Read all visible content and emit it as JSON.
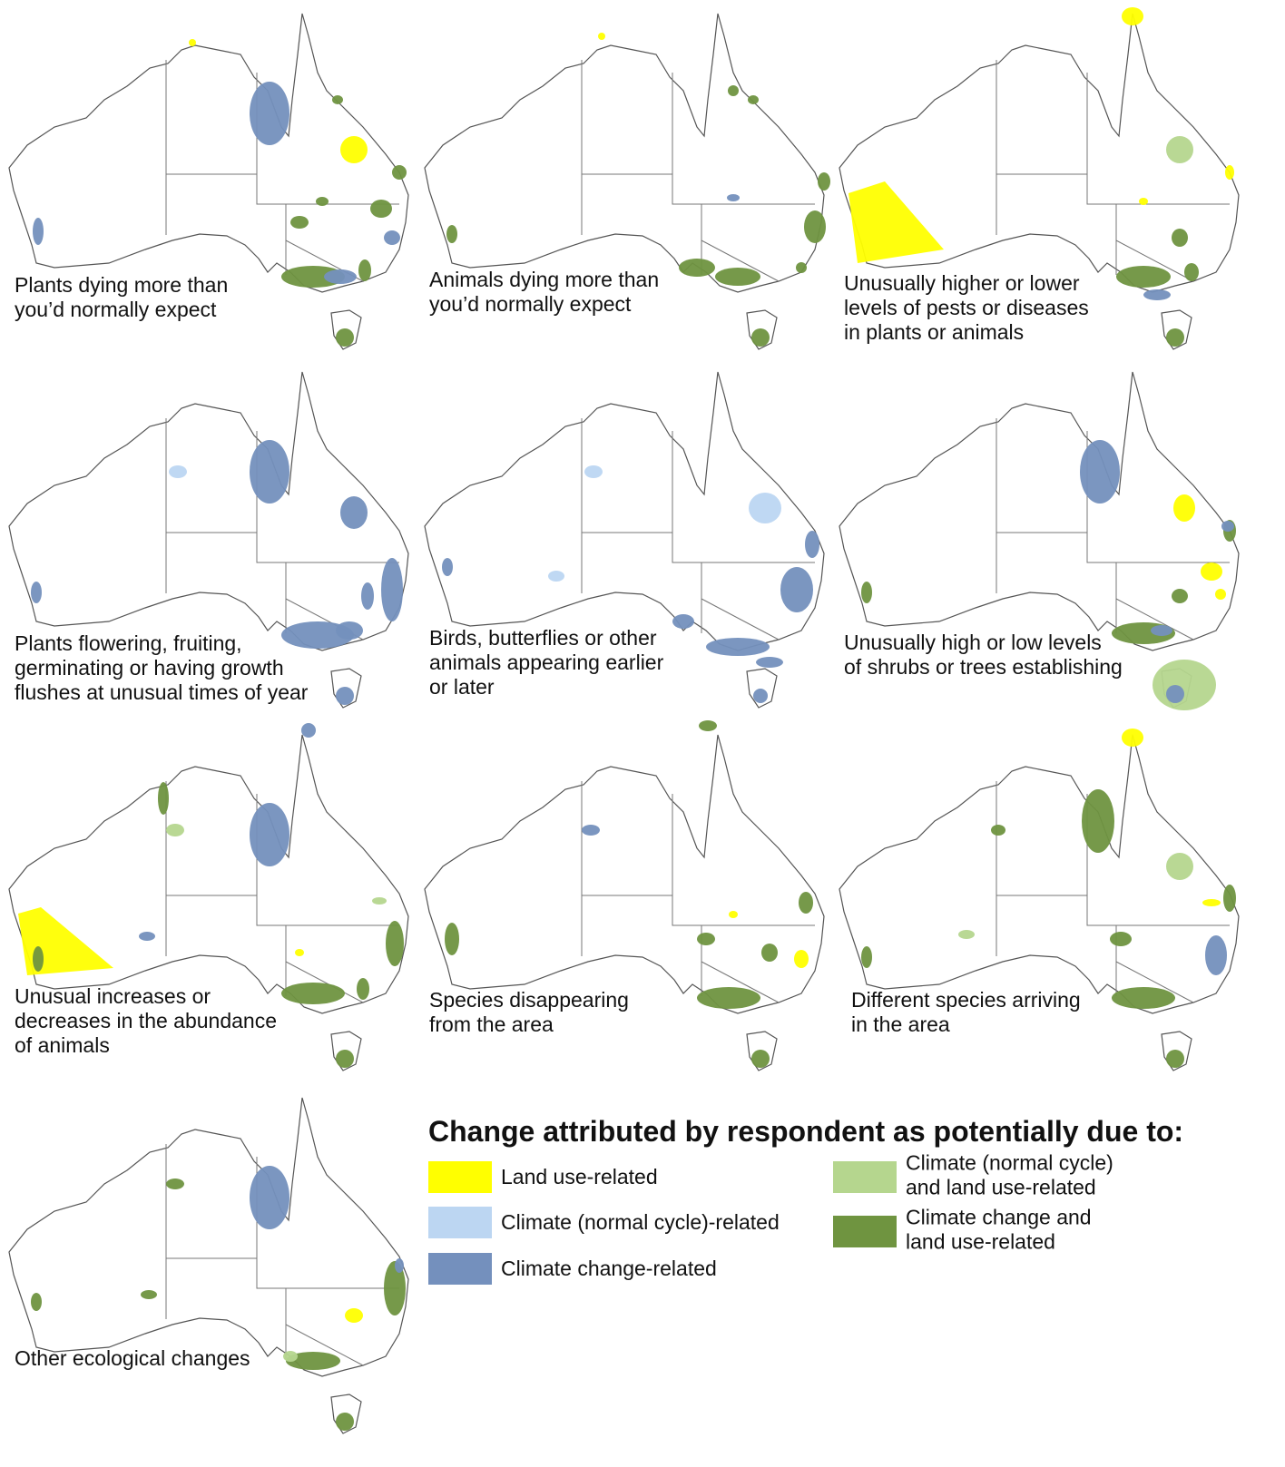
{
  "panels": [
    {
      "label": [
        "Plants dying more than",
        "you’d normally expect"
      ]
    },
    {
      "label": [
        "Animals dying more than",
        "you’d normally expect"
      ]
    },
    {
      "label": [
        "Unusually higher or lower",
        "levels of pests or diseases",
        "in plants or animals"
      ]
    },
    {
      "label": [
        "Plants flowering, fruiting,",
        "germinating or having growth",
        "flushes at unusual times of year"
      ]
    },
    {
      "label": [
        "Birds, butterflies or other",
        "animals appearing earlier",
        "or later"
      ]
    },
    {
      "label": [
        "Unusually high or low levels",
        "of shrubs or trees establishing"
      ]
    },
    {
      "label": [
        "Unusual increases or",
        "decreases in the abundance",
        "of animals"
      ]
    },
    {
      "label": [
        "Species disappearing",
        "from the area"
      ]
    },
    {
      "label": [
        "Different species arriving",
        "in the area"
      ]
    },
    {
      "label": [
        "Other ecological changes"
      ]
    }
  ],
  "legend": {
    "title": "Change attributed by respondent as potentially due to:",
    "items": [
      {
        "label": [
          "Land use-related"
        ],
        "color": "#ffff00"
      },
      {
        "label": [
          "Climate (normal cycle)-related"
        ],
        "color": "#bcd6f2"
      },
      {
        "label": [
          "Climate change-related"
        ],
        "color": "#7490bd"
      },
      {
        "label": [
          "Climate (normal cycle)",
          "and land use-related"
        ],
        "color": "#b5d68e"
      },
      {
        "label": [
          "Climate change and",
          "land use-related"
        ],
        "color": "#6f9440"
      }
    ]
  }
}
